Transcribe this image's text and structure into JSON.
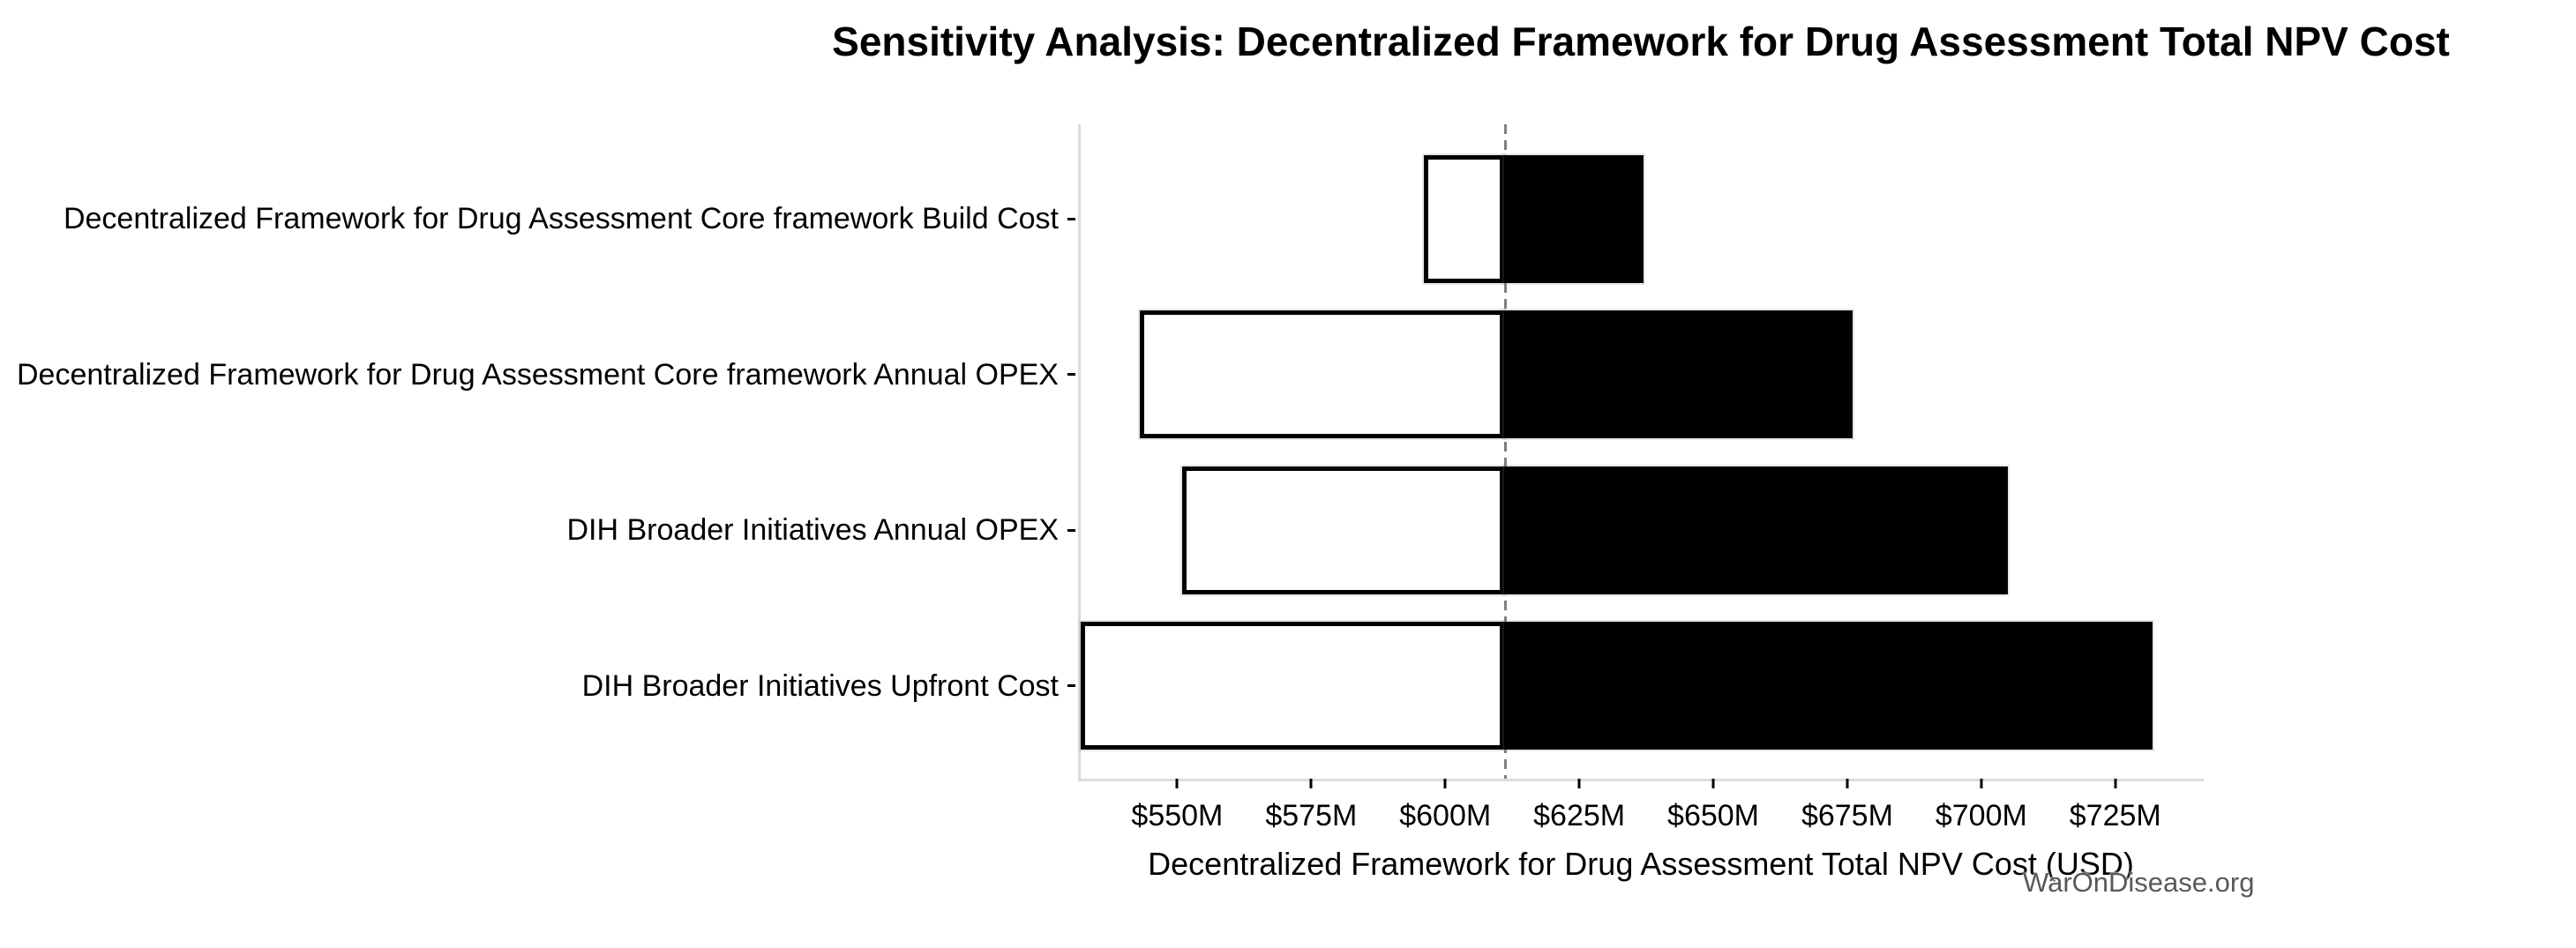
{
  "chart_data": {
    "type": "bar",
    "subtype": "tornado-sensitivity",
    "orientation": "horizontal",
    "title": "Sensitivity Analysis: Decentralized Framework for Drug Assessment Total NPV Cost",
    "xlabel": "Decentralized Framework for Drug Assessment Total NPV Cost (USD)",
    "ylabel": "",
    "categories": [
      "Decentralized Framework for Drug Assessment Core framework Build Cost",
      "Decentralized Framework for Drug Assessment Core framework Annual OPEX",
      "DIH Broader Initiatives Annual OPEX",
      "DIH Broader Initiatives Upfront Cost"
    ],
    "series": [
      {
        "name": "Low estimate (white segment, left of baseline)",
        "values": [
          596,
          543,
          551,
          532
        ]
      },
      {
        "name": "High estimate (black segment, right of baseline)",
        "values": [
          637,
          676,
          705,
          732
        ]
      }
    ],
    "values_unit": "USD millions",
    "baseline": 611,
    "xlim": [
      531.5,
      741.5
    ],
    "x_ticks": {
      "values": [
        550,
        575,
        600,
        625,
        650,
        675,
        700,
        725
      ],
      "labels": [
        "$550M",
        "$575M",
        "$600M",
        "$625M",
        "$650M",
        "$675M",
        "$700M",
        "$725M"
      ]
    },
    "grid": false,
    "legend_position": "none",
    "colors": {
      "low_bar_fill": "#ffffff",
      "high_bar_fill": "#000000",
      "bar_edge": "#000000",
      "baseline_dash": "#7f7f7f",
      "spine": "#dcdcdc",
      "tick": "#000000",
      "text": "#000000"
    }
  },
  "watermark": {
    "text": "WarOnDisease.org",
    "color": "#595959"
  }
}
